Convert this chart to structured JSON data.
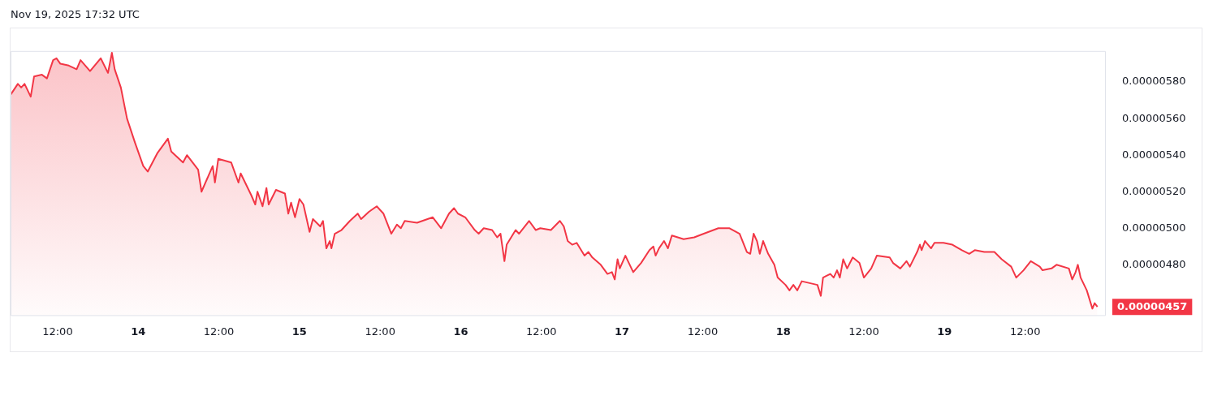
{
  "chart_data": {
    "type": "area",
    "annotations": [
      "Nov 19, 2025 17:32 UTC",
      {
        "text": "0.00000457",
        "x": "2025-11-19T22:45",
        "y": 4.57e-06
      }
    ],
    "x": [
      "2025-11-13T05:00",
      "2025-11-13T06:05",
      "2025-11-13T06:35",
      "2025-11-13T07:05",
      "2025-11-13T08:00",
      "2025-11-13T08:30",
      "2025-11-13T09:40",
      "2025-11-13T10:25",
      "2025-11-13T11:20",
      "2025-11-13T11:50",
      "2025-11-13T12:25",
      "2025-11-13T13:40",
      "2025-11-13T14:50",
      "2025-11-13T15:25",
      "2025-11-13T16:50",
      "2025-11-13T18:25",
      "2025-11-13T19:30",
      "2025-11-13T20:05",
      "2025-11-13T20:30",
      "2025-11-13T21:25",
      "2025-11-13T22:20",
      "2025-11-13T23:30",
      "2025-11-14T00:45",
      "2025-11-14T01:25",
      "2025-11-14T02:50",
      "2025-11-14T04:25",
      "2025-11-14T04:55",
      "2025-11-14T06:40",
      "2025-11-14T07:15",
      "2025-11-14T08:55",
      "2025-11-14T09:25",
      "2025-11-14T11:05",
      "2025-11-14T11:25",
      "2025-11-14T11:55",
      "2025-11-14T13:50",
      "2025-11-14T14:55",
      "2025-11-14T15:15",
      "2025-11-14T16:50",
      "2025-11-14T17:25",
      "2025-11-14T17:45",
      "2025-11-14T18:30",
      "2025-11-14T19:05",
      "2025-11-14T19:25",
      "2025-11-14T20:30",
      "2025-11-14T21:50",
      "2025-11-14T22:20",
      "2025-11-14T22:45",
      "2025-11-14T23:20",
      "2025-11-15T00:00",
      "2025-11-15T00:35",
      "2025-11-15T01:30",
      "2025-11-15T02:00",
      "2025-11-15T03:05",
      "2025-11-15T03:30",
      "2025-11-15T04:00",
      "2025-11-15T04:30",
      "2025-11-15T04:45",
      "2025-11-15T05:15",
      "2025-11-15T06:15",
      "2025-11-15T07:30",
      "2025-11-15T08:40",
      "2025-11-15T09:10",
      "2025-11-15T10:20",
      "2025-11-15T11:30",
      "2025-11-15T12:30",
      "2025-11-15T13:40",
      "2025-11-15T14:30",
      "2025-11-15T15:05",
      "2025-11-15T15:40",
      "2025-11-15T17:30",
      "2025-11-15T19:50",
      "2025-11-15T21:05",
      "2025-11-15T22:15",
      "2025-11-15T23:00",
      "2025-11-15T23:35",
      "2025-11-16T00:40",
      "2025-11-16T02:05",
      "2025-11-16T02:40",
      "2025-11-16T03:25",
      "2025-11-16T04:40",
      "2025-11-16T05:25",
      "2025-11-16T05:55",
      "2025-11-16T06:30",
      "2025-11-16T06:50",
      "2025-11-16T08:10",
      "2025-11-16T08:40",
      "2025-11-16T10:10",
      "2025-11-16T11:10",
      "2025-11-16T11:50",
      "2025-11-16T13:25",
      "2025-11-16T14:45",
      "2025-11-16T15:20",
      "2025-11-16T15:55",
      "2025-11-16T16:35",
      "2025-11-16T17:15",
      "2025-11-16T18:25",
      "2025-11-16T19:00",
      "2025-11-16T19:35",
      "2025-11-16T20:50",
      "2025-11-16T21:50",
      "2025-11-16T22:30",
      "2025-11-16T22:55",
      "2025-11-16T23:20",
      "2025-11-16T23:40",
      "2025-11-17T00:30",
      "2025-11-17T01:40",
      "2025-11-17T02:50",
      "2025-11-17T04:05",
      "2025-11-17T04:40",
      "2025-11-17T05:00",
      "2025-11-17T05:30",
      "2025-11-17T06:15",
      "2025-11-17T06:50",
      "2025-11-17T07:25",
      "2025-11-17T09:10",
      "2025-11-17T10:45",
      "2025-11-17T12:10",
      "2025-11-17T14:20",
      "2025-11-17T16:00",
      "2025-11-17T17:30",
      "2025-11-17T18:35",
      "2025-11-17T19:05",
      "2025-11-17T19:35",
      "2025-11-17T20:05",
      "2025-11-17T20:30",
      "2025-11-17T21:00",
      "2025-11-17T21:45",
      "2025-11-17T22:40",
      "2025-11-17T23:10",
      "2025-11-18T00:20",
      "2025-11-18T00:55",
      "2025-11-18T01:30",
      "2025-11-18T02:05",
      "2025-11-18T02:45",
      "2025-11-18T03:55",
      "2025-11-18T05:05",
      "2025-11-18T05:35",
      "2025-11-18T05:55",
      "2025-11-18T07:00",
      "2025-11-18T07:30",
      "2025-11-18T08:00",
      "2025-11-18T08:25",
      "2025-11-18T08:55",
      "2025-11-18T09:30",
      "2025-11-18T10:20",
      "2025-11-18T11:20",
      "2025-11-18T12:00",
      "2025-11-18T13:05",
      "2025-11-18T13:55",
      "2025-11-18T15:50",
      "2025-11-18T16:20",
      "2025-11-18T17:25",
      "2025-11-18T18:20",
      "2025-11-18T18:50",
      "2025-11-18T19:55",
      "2025-11-18T20:20",
      "2025-11-18T20:35",
      "2025-11-18T21:05",
      "2025-11-18T22:00",
      "2025-11-18T22:30",
      "2025-11-18T23:50",
      "2025-11-19T01:10",
      "2025-11-19T02:35",
      "2025-11-19T03:40",
      "2025-11-19T04:30",
      "2025-11-19T05:55",
      "2025-11-19T07:25",
      "2025-11-19T08:30",
      "2025-11-19T09:55",
      "2025-11-19T10:40",
      "2025-11-19T11:45",
      "2025-11-19T12:50",
      "2025-11-19T14:10",
      "2025-11-19T14:35",
      "2025-11-19T15:55",
      "2025-11-19T16:40",
      "2025-11-19T18:30",
      "2025-11-19T19:00",
      "2025-11-19T19:30",
      "2025-11-19T19:50",
      "2025-11-19T20:15",
      "2025-11-19T21:10",
      "2025-11-19T22:00",
      "2025-11-19T22:20",
      "2025-11-19T22:45"
    ],
    "series": [
      {
        "color": "#f23645",
        "values": [
          5.73e-06,
          5.79e-06,
          5.77e-06,
          5.79e-06,
          5.72e-06,
          5.83e-06,
          5.84e-06,
          5.82e-06,
          5.92e-06,
          5.93e-06,
          5.9e-06,
          5.89e-06,
          5.87e-06,
          5.92e-06,
          5.86e-06,
          5.93e-06,
          5.85e-06,
          5.96e-06,
          5.87e-06,
          5.77e-06,
          5.6e-06,
          5.47e-06,
          5.34e-06,
          5.31e-06,
          5.41e-06,
          5.49e-06,
          5.42e-06,
          5.36e-06,
          5.4e-06,
          5.32e-06,
          5.2e-06,
          5.34e-06,
          5.25e-06,
          5.38e-06,
          5.36e-06,
          5.25e-06,
          5.3e-06,
          5.18e-06,
          5.13e-06,
          5.2e-06,
          5.12e-06,
          5.22e-06,
          5.13e-06,
          5.21e-06,
          5.19e-06,
          5.08e-06,
          5.14e-06,
          5.06e-06,
          5.16e-06,
          5.13e-06,
          4.98e-06,
          5.05e-06,
          5.01e-06,
          5.04e-06,
          4.89e-06,
          4.93e-06,
          4.89e-06,
          4.97e-06,
          4.99e-06,
          5.04e-06,
          5.08e-06,
          5.05e-06,
          5.09e-06,
          5.12e-06,
          5.08e-06,
          4.97e-06,
          5.02e-06,
          5e-06,
          5.04e-06,
          5.03e-06,
          5.06e-06,
          5e-06,
          5.08e-06,
          5.11e-06,
          5.08e-06,
          5.06e-06,
          4.99e-06,
          4.97e-06,
          5e-06,
          4.99e-06,
          4.95e-06,
          4.97e-06,
          4.82e-06,
          4.91e-06,
          4.99e-06,
          4.97e-06,
          5.04e-06,
          4.99e-06,
          5e-06,
          4.99e-06,
          5.04e-06,
          5.01e-06,
          4.93e-06,
          4.91e-06,
          4.92e-06,
          4.85e-06,
          4.87e-06,
          4.84e-06,
          4.8e-06,
          4.75e-06,
          4.76e-06,
          4.72e-06,
          4.83e-06,
          4.78e-06,
          4.85e-06,
          4.76e-06,
          4.81e-06,
          4.88e-06,
          4.9e-06,
          4.85e-06,
          4.89e-06,
          4.93e-06,
          4.89e-06,
          4.96e-06,
          4.94e-06,
          4.95e-06,
          4.97e-06,
          5e-06,
          5e-06,
          4.97e-06,
          4.87e-06,
          4.86e-06,
          4.97e-06,
          4.93e-06,
          4.86e-06,
          4.93e-06,
          4.86e-06,
          4.8e-06,
          4.73e-06,
          4.69e-06,
          4.66e-06,
          4.69e-06,
          4.66e-06,
          4.71e-06,
          4.7e-06,
          4.69e-06,
          4.63e-06,
          4.73e-06,
          4.75e-06,
          4.73e-06,
          4.77e-06,
          4.73e-06,
          4.83e-06,
          4.78e-06,
          4.84e-06,
          4.81e-06,
          4.73e-06,
          4.78e-06,
          4.85e-06,
          4.84e-06,
          4.81e-06,
          4.78e-06,
          4.82e-06,
          4.79e-06,
          4.87e-06,
          4.91e-06,
          4.88e-06,
          4.93e-06,
          4.89e-06,
          4.92e-06,
          4.92e-06,
          4.91e-06,
          4.88e-06,
          4.86e-06,
          4.88e-06,
          4.87e-06,
          4.87e-06,
          4.83e-06,
          4.79e-06,
          4.73e-06,
          4.77e-06,
          4.82e-06,
          4.79e-06,
          4.77e-06,
          4.78e-06,
          4.8e-06,
          4.78e-06,
          4.72e-06,
          4.76e-06,
          4.8e-06,
          4.73e-06,
          4.66e-06,
          4.56e-06,
          4.59e-06,
          4.57e-06
        ]
      }
    ],
    "xlim": [
      "2025-11-13T05:00",
      "2025-11-20T00:00"
    ],
    "xticks": [
      {
        "value": "2025-11-13T12:00",
        "label": "12:00"
      },
      {
        "value": "2025-11-14T00:00",
        "label": "14"
      },
      {
        "value": "2025-11-14T12:00",
        "label": "12:00"
      },
      {
        "value": "2025-11-15T00:00",
        "label": "15"
      },
      {
        "value": "2025-11-15T12:00",
        "label": "12:00"
      },
      {
        "value": "2025-11-16T00:00",
        "label": "16"
      },
      {
        "value": "2025-11-16T12:00",
        "label": "12:00"
      },
      {
        "value": "2025-11-17T00:00",
        "label": "17"
      },
      {
        "value": "2025-11-17T12:00",
        "label": "12:00"
      },
      {
        "value": "2025-11-18T00:00",
        "label": "18"
      },
      {
        "value": "2025-11-18T12:00",
        "label": "12:00"
      },
      {
        "value": "2025-11-19T00:00",
        "label": "19"
      },
      {
        "value": "2025-11-19T12:00",
        "label": "12:00"
      }
    ],
    "ylim": [
      4.52e-06,
      5.97e-06
    ],
    "yticks": [
      {
        "value": 4.8e-06,
        "label": "0.00000480"
      },
      {
        "value": 5e-06,
        "label": "0.00000500"
      },
      {
        "value": 5.2e-06,
        "label": "0.00000520"
      },
      {
        "value": 5.4e-06,
        "label": "0.00000540"
      },
      {
        "value": 5.6e-06,
        "label": "0.00000560"
      },
      {
        "value": 5.8e-06,
        "label": "0.00000580"
      }
    ],
    "grid": false,
    "legend": false,
    "marker": "none",
    "line_style": "solid"
  }
}
